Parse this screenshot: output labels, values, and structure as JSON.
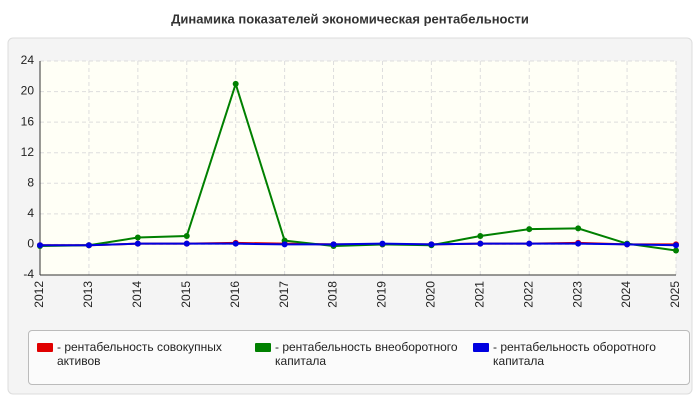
{
  "chart_data": {
    "type": "line",
    "title": "Динамика показателей экономическая рентабельности",
    "categories": [
      "2012",
      "2013",
      "2014",
      "2015",
      "2016",
      "2017",
      "2018",
      "2019",
      "2020",
      "2021",
      "2022",
      "2023",
      "2024",
      "2025"
    ],
    "series": [
      {
        "name": "- рентабельность совокупных активов",
        "color": "#e00000",
        "values": [
          -0.1,
          -0.1,
          0.1,
          0.1,
          0.2,
          0.1,
          0,
          0,
          0,
          0.1,
          0.1,
          0.2,
          0,
          0
        ]
      },
      {
        "name": "- рентабельность внеоборотного капитала",
        "color": "#008000",
        "values": [
          -0.2,
          -0.1,
          0.9,
          1.1,
          21,
          0.5,
          -0.2,
          0,
          -0.1,
          1.1,
          2.0,
          2.1,
          0.1,
          -0.8
        ]
      },
      {
        "name": "- рентабельность оборотного капитала",
        "color": "#0000e0",
        "values": [
          -0.1,
          -0.1,
          0.1,
          0.1,
          0.1,
          0,
          0,
          0.1,
          0,
          0.1,
          0.1,
          0.1,
          0,
          -0.1
        ]
      }
    ],
    "ylim": [
      -4,
      24
    ],
    "yticks": [
      -4,
      0,
      4,
      8,
      12,
      16,
      20,
      24
    ],
    "grid": true
  }
}
